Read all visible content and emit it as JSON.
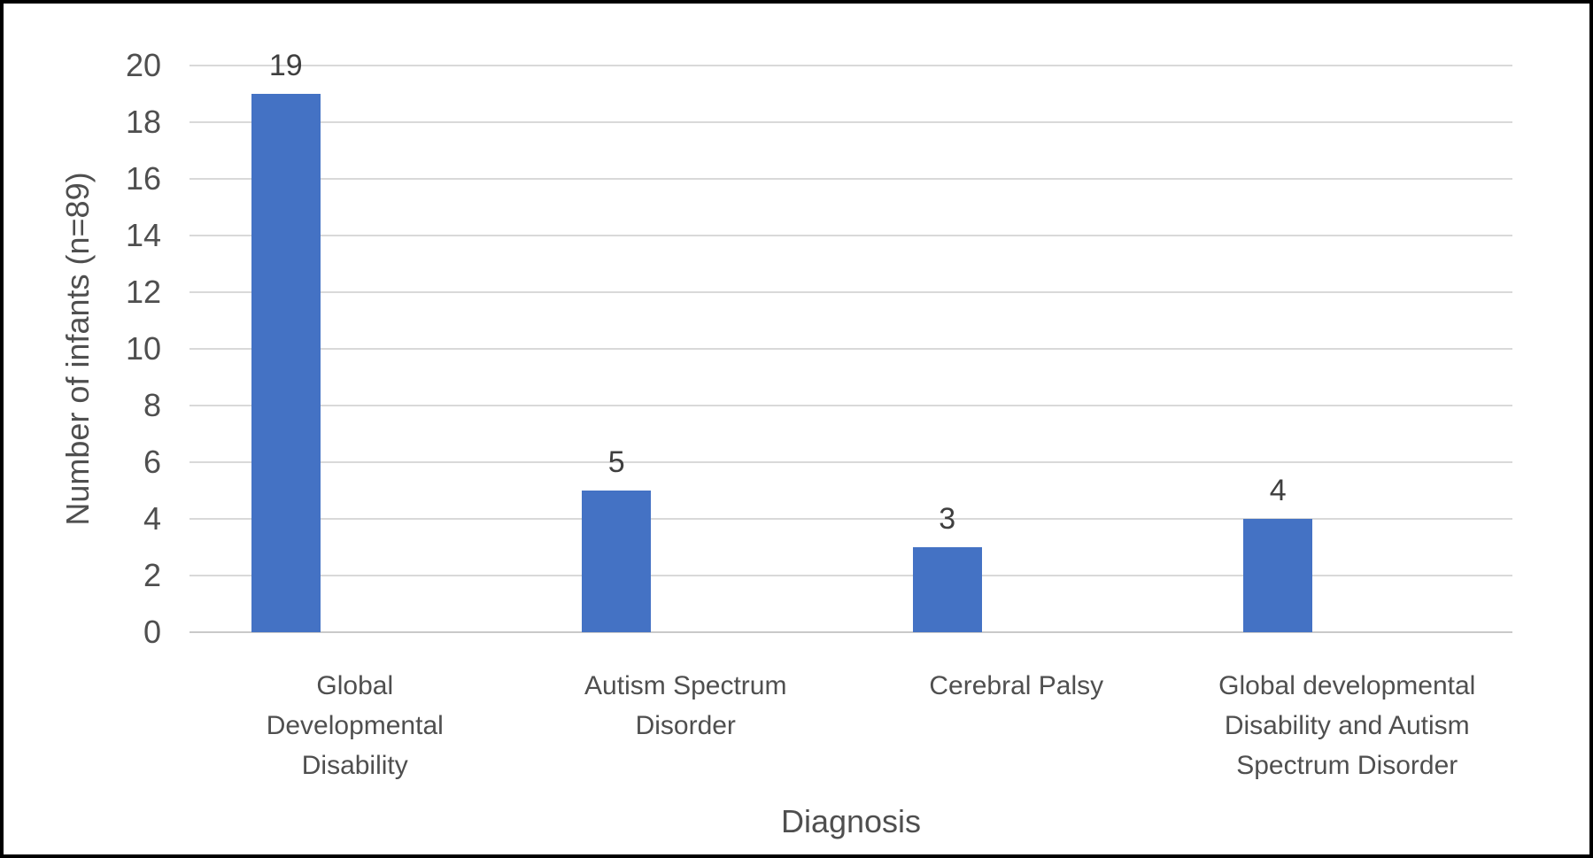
{
  "chart_data": {
    "type": "bar",
    "title": "",
    "categories": [
      "Global Developmental Disability",
      "Autism Spectrum Disorder",
      "Cerebral Palsy",
      "Global developmental Disability and Autism Spectrum Disorder"
    ],
    "category_lines": [
      [
        "Global",
        "Developmental",
        "Disability"
      ],
      [
        "Autism Spectrum",
        "Disorder"
      ],
      [
        "Cerebral Palsy"
      ],
      [
        "Global developmental",
        "Disability and Autism",
        "Spectrum Disorder"
      ]
    ],
    "values": [
      19,
      5,
      3,
      4
    ],
    "data_labels": [
      "19",
      "5",
      "3",
      "4"
    ],
    "xlabel": "Diagnosis",
    "ylabel": "Number of infants (n=89)",
    "ylim": [
      0,
      20
    ],
    "ytick_step": 2,
    "ytick_labels": [
      "0",
      "2",
      "4",
      "6",
      "8",
      "10",
      "12",
      "14",
      "16",
      "18",
      "20"
    ],
    "grid": true,
    "legend_position": "none",
    "colors": {
      "bar": "#4472C4",
      "gridline": "#D9D9D9",
      "baseline": "#C9C9C9",
      "text": "#4f4f4f",
      "value_label_text": "#3f3f3f",
      "border": "#000000",
      "background": "#ffffff"
    }
  }
}
